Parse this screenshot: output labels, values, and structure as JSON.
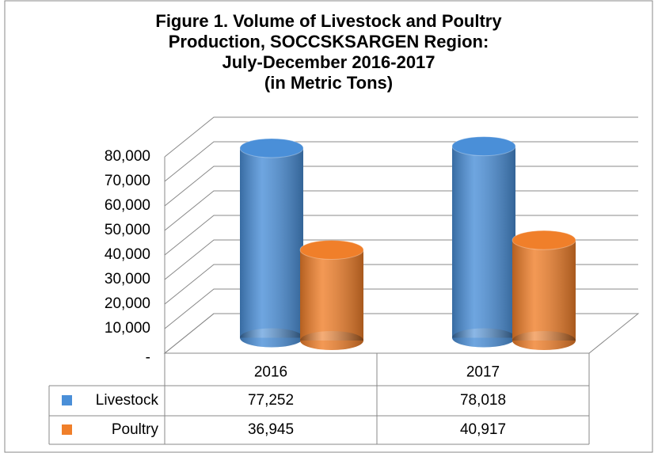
{
  "chart_data": {
    "type": "bar3d",
    "title": [
      "Figure 1. Volume of Livestock  and Poultry",
      "Production, SOCCSKSARGEN  Region:",
      "July-December 2016-2017",
      "(in Metric Tons)"
    ],
    "categories": [
      "2016",
      "2017"
    ],
    "series": [
      {
        "name": "Livestock",
        "color": "#4a8fd8",
        "values": [
          77252,
          78018
        ],
        "value_labels": [
          "77,252",
          "78,018"
        ]
      },
      {
        "name": "Poultry",
        "color": "#f07f2a",
        "values": [
          36945,
          40917
        ],
        "value_labels": [
          "36,945",
          "40,917"
        ]
      }
    ],
    "ylim": [
      0,
      80000
    ],
    "yticks": [
      {
        "value": 0,
        "label": "-"
      },
      {
        "value": 10000,
        "label": "10,000"
      },
      {
        "value": 20000,
        "label": "20,000"
      },
      {
        "value": 30000,
        "label": "30,000"
      },
      {
        "value": 40000,
        "label": "40,000"
      },
      {
        "value": 50000,
        "label": "50,000"
      },
      {
        "value": 60000,
        "label": "60,000"
      },
      {
        "value": 70000,
        "label": "70,000"
      },
      {
        "value": 80000,
        "label": "80,000"
      }
    ],
    "grid": true
  }
}
